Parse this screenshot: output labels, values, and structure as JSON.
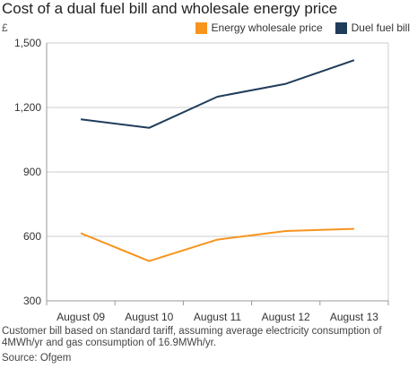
{
  "chart_data": {
    "type": "line",
    "title": "Cost of a dual fuel bill and wholesale energy price",
    "ylabel": "£",
    "xlabel": "",
    "categories": [
      "August 09",
      "August 10",
      "August 11",
      "August 12",
      "August 13"
    ],
    "ylim": [
      300,
      1500
    ],
    "yticks": [
      300,
      600,
      900,
      1200,
      1500
    ],
    "ytick_labels": [
      "300",
      "600",
      "900",
      "1,200",
      "1,500"
    ],
    "grid": true,
    "legend_position": "top-right",
    "series": [
      {
        "name": "Energy wholesale price",
        "color": "#f7941d",
        "values": [
          615,
          485,
          585,
          625,
          635
        ]
      },
      {
        "name": "Duel fuel bill",
        "color": "#1f3d5a",
        "values": [
          1145,
          1105,
          1250,
          1310,
          1420
        ]
      }
    ],
    "footnote": "Customer bill based on standard tariff, assuming average electricity consumption of 4MWh/yr and gas consumption of 16.9MWh/yr.",
    "source": "Source: Ofgem"
  }
}
